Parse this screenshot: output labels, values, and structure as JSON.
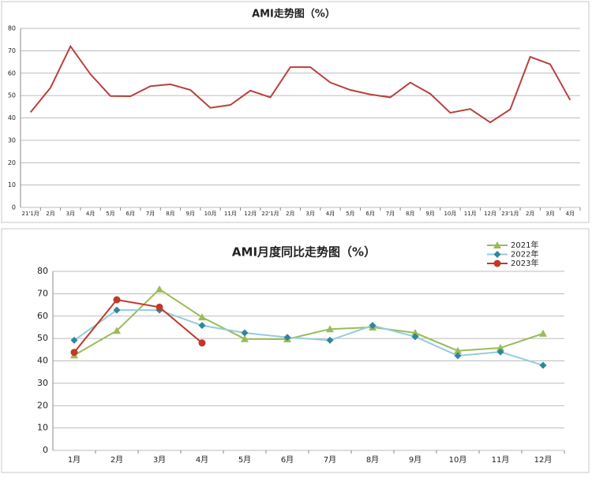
{
  "chart_data": [
    {
      "type": "line",
      "title": "AMI走势图（%）",
      "categories": [
        "21'1月",
        "2月",
        "3月",
        "4月",
        "5月",
        "6月",
        "7月",
        "8月",
        "9月",
        "10月",
        "11月",
        "12月",
        "22'1月",
        "2月",
        "3月",
        "4月",
        "5月",
        "6月",
        "7月",
        "8月",
        "9月",
        "10月",
        "11月",
        "12月",
        "23'1月",
        "2月",
        "3月",
        "4月"
      ],
      "values": [
        42.5,
        53.5,
        72,
        59.5,
        49.8,
        49.7,
        54.2,
        55,
        52.5,
        44.5,
        45.8,
        52.2,
        49.2,
        62.7,
        62.7,
        55.8,
        52.5,
        50.5,
        49.2,
        55.8,
        50.8,
        42.3,
        44,
        38,
        43.8,
        67.3,
        64,
        48
      ],
      "color": "#b9403d",
      "ylim": [
        0,
        80
      ],
      "yticks": [
        0,
        10,
        20,
        30,
        40,
        50,
        60,
        70,
        80
      ],
      "grid": true
    },
    {
      "type": "line",
      "title": "AMI月度同比走势图（%）",
      "categories": [
        "1月",
        "2月",
        "3月",
        "4月",
        "5月",
        "6月",
        "7月",
        "8月",
        "9月",
        "10月",
        "11月",
        "12月"
      ],
      "series": [
        {
          "name": "2021年",
          "color": "#9bbb59",
          "marker_color": "#9bbb59",
          "marker": "triangle",
          "values": [
            42.5,
            53.5,
            72,
            59.5,
            49.8,
            49.7,
            54.2,
            55,
            52.5,
            44.5,
            45.8,
            52.2
          ]
        },
        {
          "name": "2022年",
          "color": "#93cddd",
          "marker_color": "#31859c",
          "marker": "diamond",
          "values": [
            49.2,
            62.7,
            62.7,
            55.8,
            52.5,
            50.5,
            49.2,
            55.8,
            50.8,
            42.3,
            44,
            38
          ]
        },
        {
          "name": "2023年",
          "color": "#c0392b",
          "marker_color": "#c0392b",
          "marker": "circle",
          "values": [
            43.8,
            67.3,
            64,
            48,
            null,
            null,
            null,
            null,
            null,
            null,
            null,
            null
          ]
        }
      ],
      "ylim": [
        0,
        80
      ],
      "yticks": [
        0,
        10,
        20,
        30,
        40,
        50,
        60,
        70,
        80
      ],
      "grid": true,
      "legend": "top-right"
    }
  ]
}
